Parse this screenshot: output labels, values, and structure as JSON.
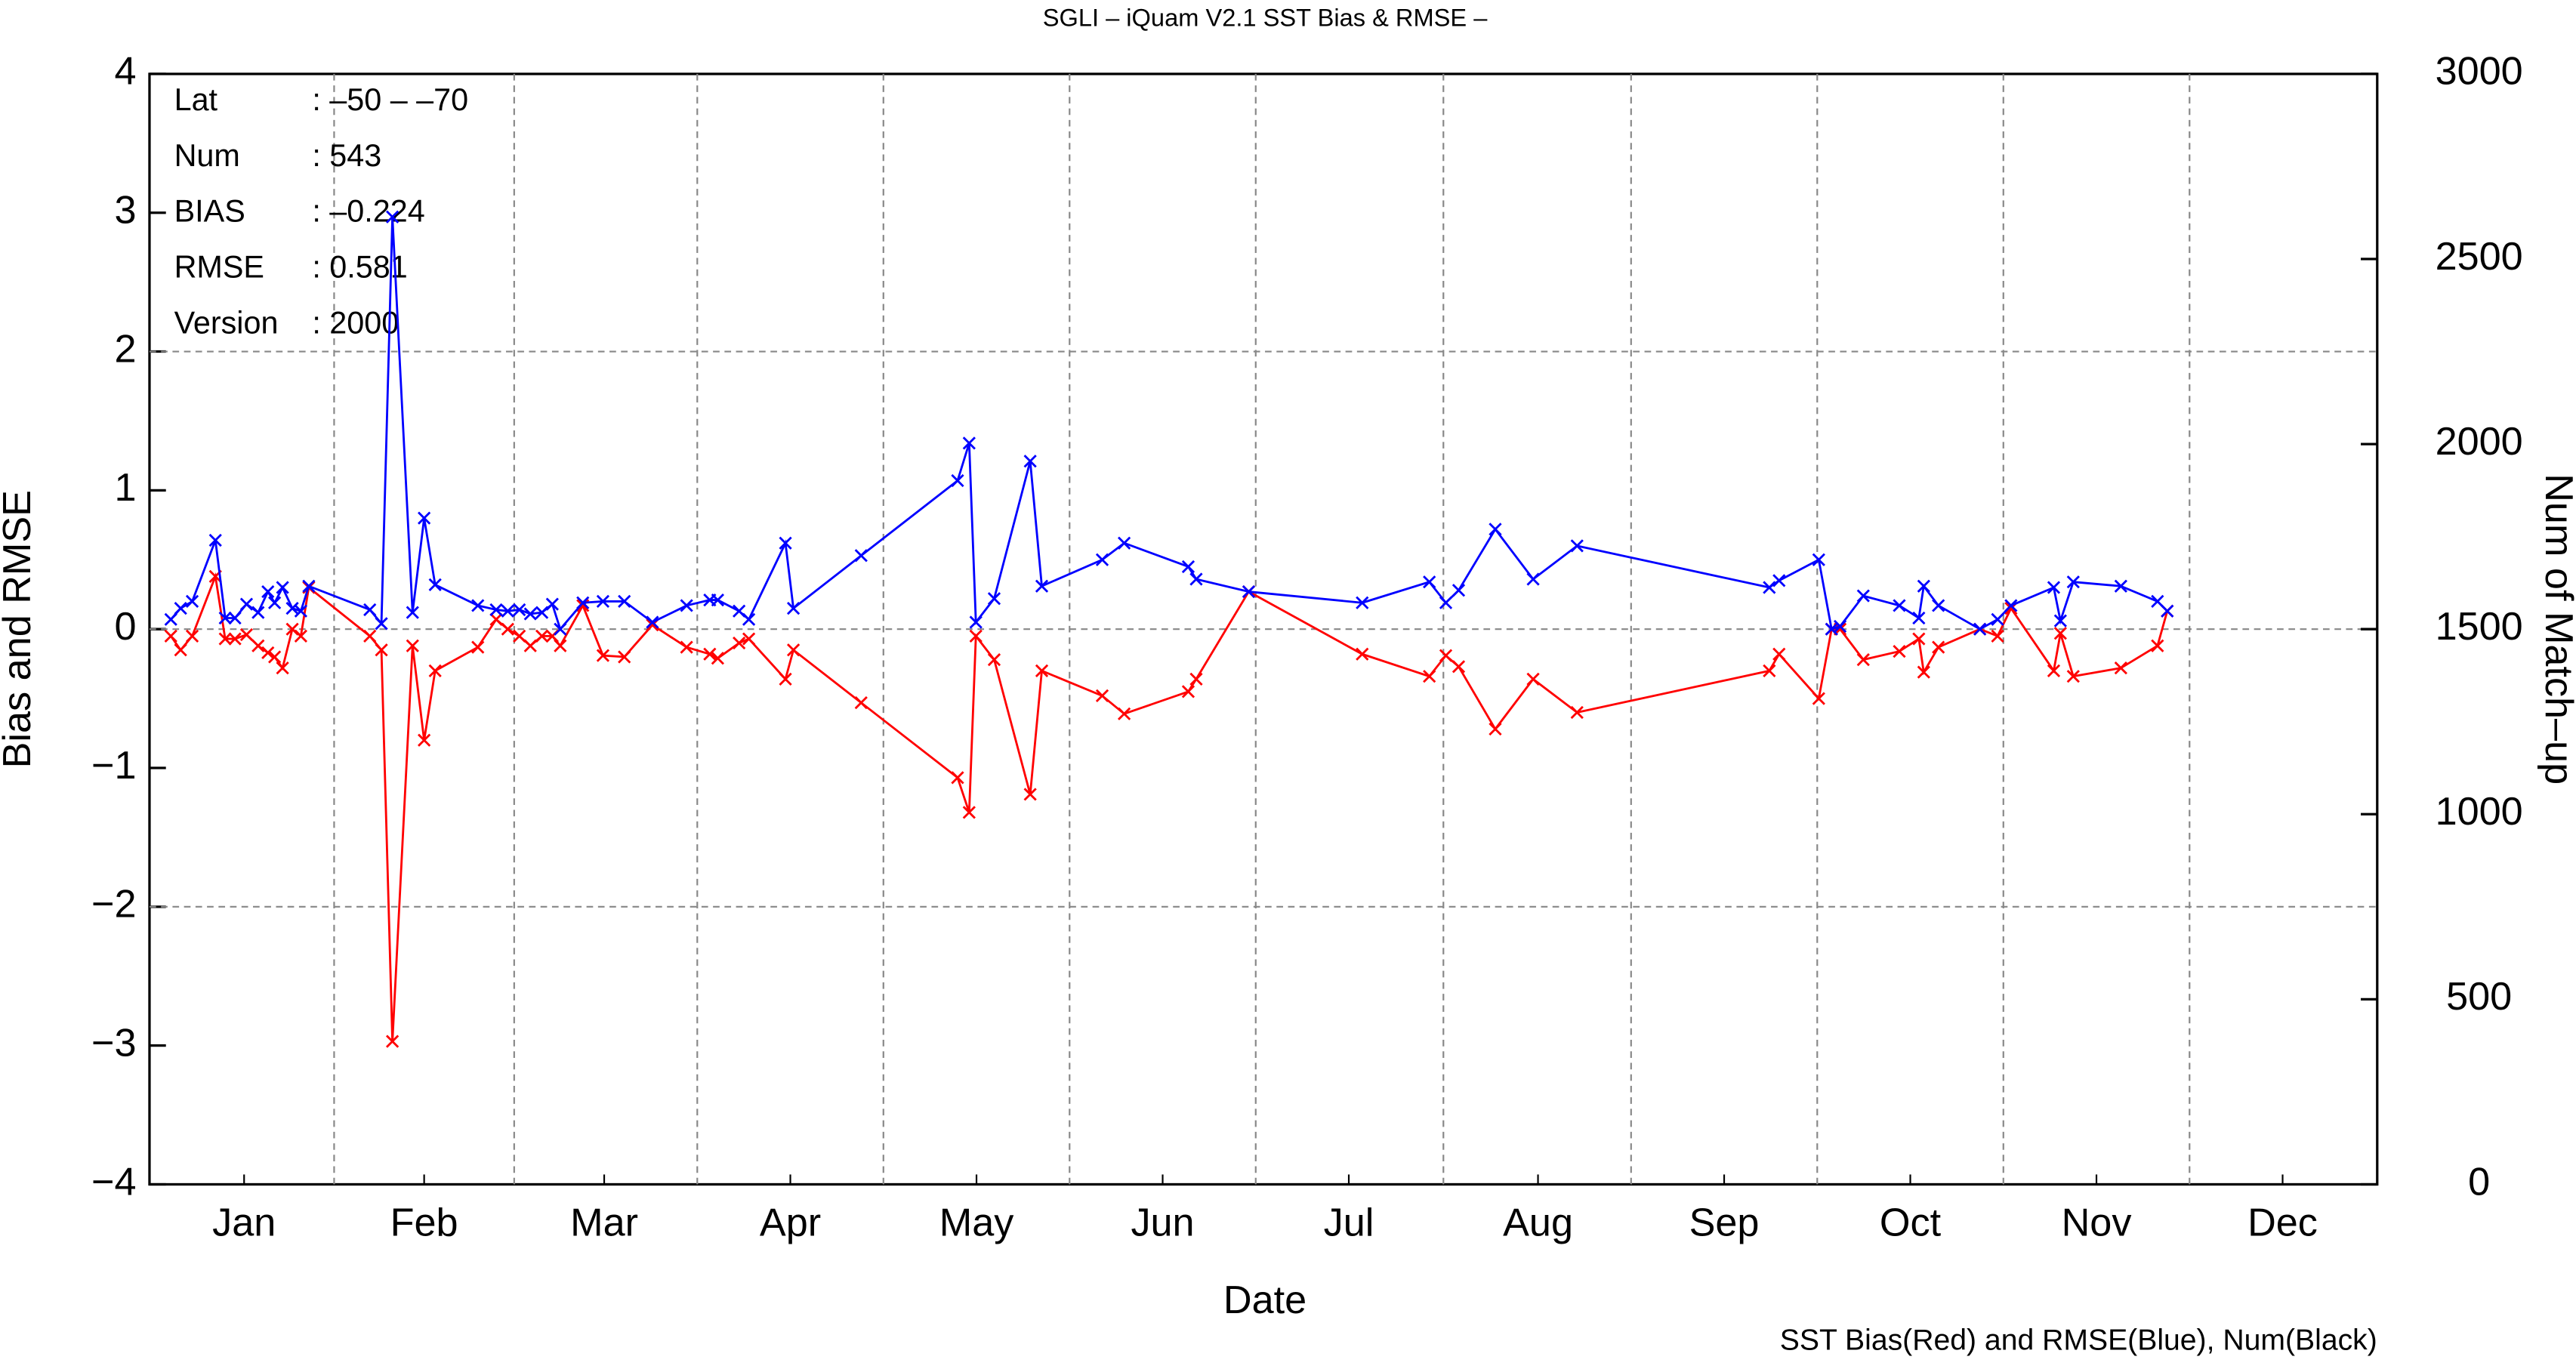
{
  "chart_data": {
    "type": "line",
    "title": "SGLI – iQuam V2.1 SST Bias & RMSE  –",
    "xlabel": "Date",
    "ylabel": "Bias and RMSE",
    "y2label": "Num of Match–up",
    "footer": "SST Bias(Red) and RMSE(Blue), Num(Black)",
    "info": [
      {
        "label": "Lat",
        "value": ": –50 – –70"
      },
      {
        "label": "Num",
        "value": ": 543"
      },
      {
        "label": "BIAS",
        "value": ": –0.224"
      },
      {
        "label": "RMSE",
        "value": ": 0.581"
      },
      {
        "label": "Version",
        "value": ": 2000"
      }
    ],
    "xlim": [
      0,
      365
    ],
    "xticks": [
      {
        "value": 15.5,
        "label": "Jan"
      },
      {
        "value": 45,
        "label": "Feb"
      },
      {
        "value": 74.5,
        "label": "Mar"
      },
      {
        "value": 105,
        "label": "Apr"
      },
      {
        "value": 135.5,
        "label": "May"
      },
      {
        "value": 166,
        "label": "Jun"
      },
      {
        "value": 196.5,
        "label": "Jul"
      },
      {
        "value": 227.5,
        "label": "Aug"
      },
      {
        "value": 258,
        "label": "Sep"
      },
      {
        "value": 288.5,
        "label": "Oct"
      },
      {
        "value": 319,
        "label": "Nov"
      },
      {
        "value": 349.5,
        "label": "Dec"
      }
    ],
    "ylim": [
      -4,
      4
    ],
    "yticks": [
      -4,
      -3,
      -2,
      -1,
      0,
      1,
      2,
      3,
      4
    ],
    "ygrid": [
      -2,
      0,
      2
    ],
    "y2lim": [
      0,
      3000
    ],
    "y2ticks": [
      0,
      500,
      1000,
      1500,
      2000,
      2500,
      3000
    ],
    "grid": true,
    "x": [
      3.5,
      5.1,
      7,
      10.8,
      12.4,
      14,
      15.9,
      17.8,
      19.4,
      20.5,
      21.8,
      23.4,
      24.8,
      26.1,
      36.1,
      38,
      39.8,
      43.1,
      45,
      46.8,
      53.8,
      56.8,
      58.7,
      60.6,
      62.4,
      64.3,
      66,
      67.3,
      71,
      74.3,
      77.8,
      82.4,
      88,
      91.8,
      93.1,
      96.6,
      98.2,
      104.2,
      105.5,
      116.6,
      132.4,
      134.3,
      135.4,
      138.4,
      144.3,
      146.2,
      156.1,
      159.7,
      170.2,
      171.5,
      180.1,
      198.7,
      209.7,
      212.4,
      214.5,
      220.5,
      226.7,
      233.9,
      265.4,
      267,
      273.5,
      275.6,
      277,
      280.8,
      286.7,
      289.9,
      290.7,
      293.1,
      299.9,
      302.8,
      305,
      312,
      313.1,
      315.2,
      323,
      329,
      330.6
    ],
    "series": [
      {
        "name": "SST Bias",
        "color": "#ff0000",
        "values": [
          -0.05,
          -0.15,
          -0.05,
          0.38,
          -0.07,
          -0.07,
          -0.04,
          -0.12,
          -0.17,
          -0.2,
          -0.28,
          0.0,
          -0.05,
          0.3,
          -0.05,
          -0.15,
          -2.97,
          -0.12,
          -0.8,
          -0.3,
          -0.13,
          0.07,
          0.0,
          -0.05,
          -0.12,
          -0.05,
          -0.05,
          -0.12,
          0.17,
          -0.19,
          -0.2,
          0.03,
          -0.13,
          -0.18,
          -0.21,
          -0.1,
          -0.07,
          -0.36,
          -0.15,
          -0.53,
          -1.07,
          -1.32,
          -0.05,
          -0.22,
          -1.19,
          -0.3,
          -0.48,
          -0.61,
          -0.45,
          -0.36,
          0.27,
          -0.18,
          -0.34,
          -0.19,
          -0.27,
          -0.72,
          -0.36,
          -0.6,
          -0.3,
          -0.18,
          -0.5,
          0.0,
          0.0,
          -0.22,
          -0.16,
          -0.07,
          -0.31,
          -0.13,
          0.0,
          -0.05,
          0.15,
          -0.3,
          -0.03,
          -0.34,
          -0.28,
          -0.12,
          0.13
        ]
      },
      {
        "name": "RMSE",
        "color": "#0000ff",
        "values": [
          0.07,
          0.15,
          0.2,
          0.64,
          0.08,
          0.08,
          0.18,
          0.12,
          0.27,
          0.19,
          0.3,
          0.15,
          0.13,
          0.31,
          0.14,
          0.04,
          2.97,
          0.12,
          0.8,
          0.32,
          0.17,
          0.14,
          0.13,
          0.14,
          0.11,
          0.12,
          0.18,
          0.0,
          0.19,
          0.2,
          0.2,
          0.05,
          0.17,
          0.21,
          0.21,
          0.13,
          0.07,
          0.62,
          0.15,
          0.53,
          1.07,
          1.34,
          0.05,
          0.22,
          1.21,
          0.31,
          0.5,
          0.62,
          0.45,
          0.36,
          0.27,
          0.19,
          0.34,
          0.19,
          0.28,
          0.72,
          0.36,
          0.6,
          0.3,
          0.35,
          0.5,
          0.0,
          0.02,
          0.24,
          0.17,
          0.08,
          0.31,
          0.17,
          0.0,
          0.07,
          0.17,
          0.3,
          0.06,
          0.34,
          0.31,
          0.2,
          0.13
        ]
      }
    ]
  }
}
